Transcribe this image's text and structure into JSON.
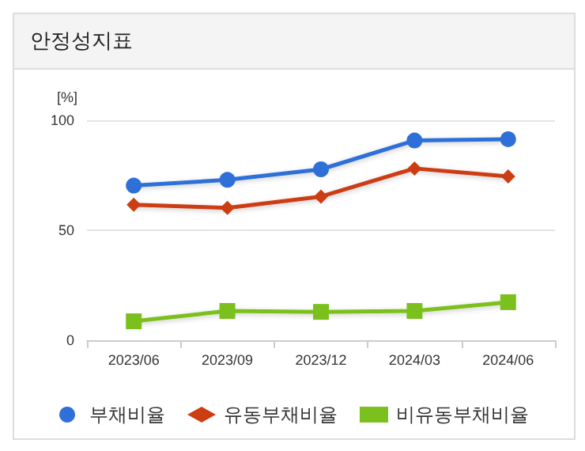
{
  "chart_data": {
    "type": "line",
    "title": "안정성지표",
    "ylabel": "[%]",
    "categories": [
      "2023/06",
      "2023/09",
      "2023/12",
      "2024/03",
      "2024/06"
    ],
    "series": [
      {
        "name": "부채비율",
        "color": "#2f6fd8",
        "marker": "circle",
        "values": [
          70.3,
          72.9,
          77.7,
          90.8,
          91.4
        ]
      },
      {
        "name": "유동부채비율",
        "color": "#cc3d12",
        "marker": "diamond",
        "values": [
          61.6,
          60.2,
          65.3,
          78.1,
          74.5
        ]
      },
      {
        "name": "비유동부채비율",
        "color": "#7cc01e",
        "marker": "square",
        "values": [
          8.6,
          13.3,
          12.9,
          13.3,
          17.3
        ]
      }
    ],
    "ylim": [
      0,
      100
    ],
    "yticks": [
      0,
      50,
      100
    ],
    "grid": "y",
    "legend": "bottom"
  }
}
